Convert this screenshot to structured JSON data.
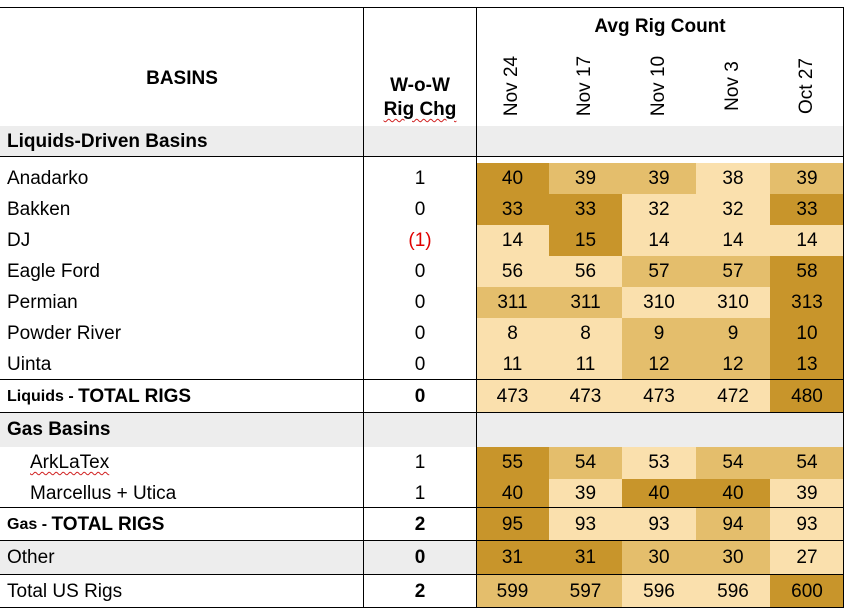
{
  "chart_data": {
    "type": "table",
    "title": "Avg Rig Count",
    "row_header": "BASINS",
    "change_header": [
      "W-o-W",
      "Rig Chg"
    ],
    "columns": [
      "Nov 24",
      "Nov 17",
      "Nov 10",
      "Nov 3",
      "Oct 27"
    ],
    "heat_colors": {
      "low": "#fae0ad",
      "mid": "#e4be6c",
      "high": "#c8952b",
      "section_bg": "#ededed"
    },
    "rows": [
      {
        "kind": "section",
        "label": "Liquids-Driven Basins"
      },
      {
        "kind": "data",
        "label": "Anadarko",
        "chg": "1",
        "values": [
          40,
          39,
          39,
          38,
          39
        ],
        "shade": [
          3,
          2,
          2,
          1,
          2
        ]
      },
      {
        "kind": "data",
        "label": "Bakken",
        "chg": "0",
        "values": [
          33,
          33,
          32,
          32,
          33
        ],
        "shade": [
          3,
          3,
          1,
          1,
          3
        ]
      },
      {
        "kind": "data",
        "label": "DJ",
        "chg": "(1)",
        "negative": true,
        "values": [
          14,
          15,
          14,
          14,
          14
        ],
        "shade": [
          1,
          3,
          1,
          1,
          1
        ]
      },
      {
        "kind": "data",
        "label": "Eagle Ford",
        "chg": "0",
        "values": [
          56,
          56,
          57,
          57,
          58
        ],
        "shade": [
          1,
          1,
          2,
          2,
          3
        ]
      },
      {
        "kind": "data",
        "label": "Permian",
        "chg": "0",
        "values": [
          311,
          311,
          310,
          310,
          313
        ],
        "shade": [
          2,
          2,
          1,
          1,
          3
        ]
      },
      {
        "kind": "data",
        "label": "Powder River",
        "chg": "0",
        "values": [
          8,
          8,
          9,
          9,
          10
        ],
        "shade": [
          1,
          1,
          2,
          2,
          3
        ]
      },
      {
        "kind": "data",
        "label": "Uinta",
        "chg": "0",
        "values": [
          11,
          11,
          12,
          12,
          13
        ],
        "shade": [
          1,
          1,
          2,
          2,
          3
        ]
      },
      {
        "kind": "total",
        "label_small": "Liquids - ",
        "label_big": "TOTAL RIGS",
        "chg": "0",
        "values": [
          473,
          473,
          473,
          472,
          480
        ],
        "shade": [
          1,
          1,
          1,
          1,
          3
        ]
      },
      {
        "kind": "section",
        "label": "Gas Basins"
      },
      {
        "kind": "data",
        "label": "ArkLaTex",
        "indent": true,
        "squiggle": true,
        "chg": "1",
        "values": [
          55,
          54,
          53,
          54,
          54
        ],
        "shade": [
          3,
          2,
          1,
          2,
          2
        ]
      },
      {
        "kind": "data",
        "label": "Marcellus + Utica",
        "indent": true,
        "chg": "1",
        "values": [
          40,
          39,
          40,
          40,
          39
        ],
        "shade": [
          3,
          1,
          3,
          3,
          1
        ]
      },
      {
        "kind": "total",
        "label_small": "Gas - ",
        "label_big": "TOTAL RIGS",
        "chg": "2",
        "values": [
          95,
          93,
          93,
          94,
          93
        ],
        "shade": [
          3,
          1,
          1,
          2,
          1
        ]
      },
      {
        "kind": "other",
        "label": "Other",
        "chg": "0",
        "values": [
          31,
          31,
          30,
          30,
          27
        ],
        "shade": [
          3,
          3,
          2,
          2,
          1
        ]
      },
      {
        "kind": "grand",
        "label": "Total US Rigs",
        "chg": "2",
        "values": [
          599,
          597,
          596,
          596,
          600
        ],
        "shade": [
          2,
          2,
          1,
          1,
          3
        ]
      }
    ]
  }
}
